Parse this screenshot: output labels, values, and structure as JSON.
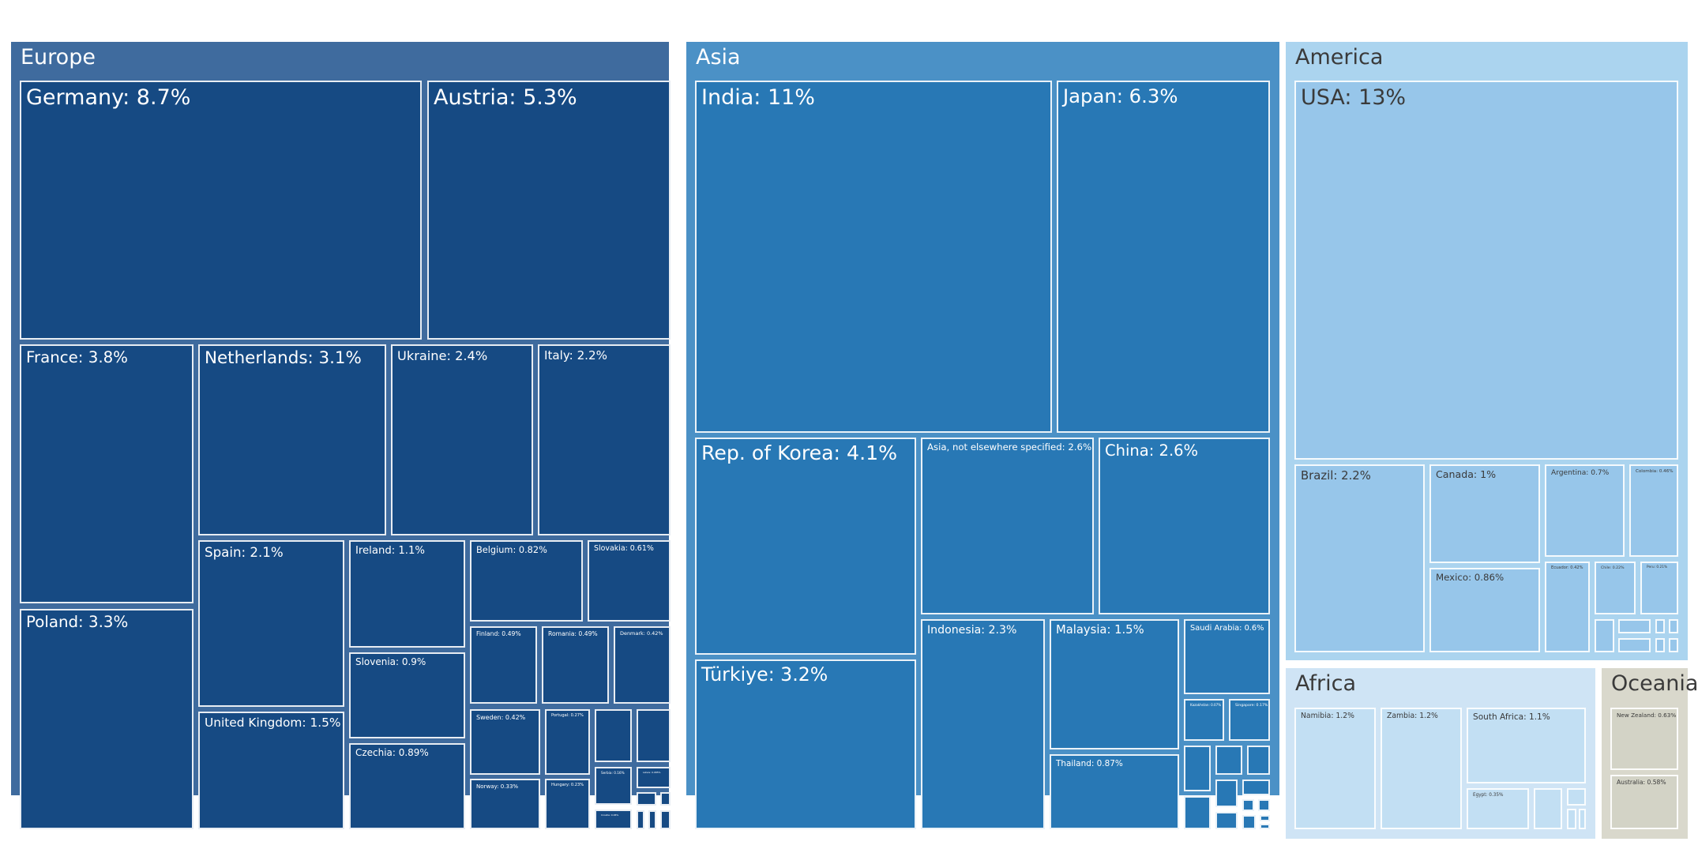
{
  "chart_data": {
    "type": "treemap",
    "unit": "%",
    "groups": [
      {
        "name": "Europe",
        "color": "#3f6b9e",
        "cell_color": "#164a83",
        "text_color": "#ffffff",
        "items": [
          {
            "name": "Germany",
            "label": "Germany: 8.7%",
            "value": 8.7
          },
          {
            "name": "Austria",
            "label": "Austria: 5.3%",
            "value": 5.3
          },
          {
            "name": "France",
            "label": "France: 3.8%",
            "value": 3.8
          },
          {
            "name": "Netherlands",
            "label": "Netherlands: 3.1%",
            "value": 3.1
          },
          {
            "name": "Ukraine",
            "label": "Ukraine: 2.4%",
            "value": 2.4
          },
          {
            "name": "Italy",
            "label": "Italy: 2.2%",
            "value": 2.2
          },
          {
            "name": "Poland",
            "label": "Poland: 3.3%",
            "value": 3.3
          },
          {
            "name": "Spain",
            "label": "Spain: 2.1%",
            "value": 2.1
          },
          {
            "name": "Ireland",
            "label": "Ireland: 1.1%",
            "value": 1.1
          },
          {
            "name": "Belgium",
            "label": "Belgium: 0.82%",
            "value": 0.82
          },
          {
            "name": "Slovakia",
            "label": "Slovakia: 0.61%",
            "value": 0.61
          },
          {
            "name": "Slovenia",
            "label": "Slovenia: 0.9%",
            "value": 0.9
          },
          {
            "name": "Finland",
            "label": "Finland: 0.49%",
            "value": 0.49
          },
          {
            "name": "Romania",
            "label": "Romania: 0.49%",
            "value": 0.49
          },
          {
            "name": "Denmark",
            "label": "Denmark: 0.42%",
            "value": 0.42
          },
          {
            "name": "United Kingdom",
            "label": "United Kingdom: 1.5%",
            "value": 1.5
          },
          {
            "name": "Czechia",
            "label": "Czechia: 0.89%",
            "value": 0.89
          },
          {
            "name": "Sweden",
            "label": "Sweden: 0.42%",
            "value": 0.42
          },
          {
            "name": "Portugal",
            "label": "Portugal: 0.27%",
            "value": 0.27
          },
          {
            "name": "Norway",
            "label": "Norway: 0.33%",
            "value": 0.33
          },
          {
            "name": "Hungary",
            "label": "Hungary: 0.23%",
            "value": 0.23
          },
          {
            "name": "Serbia",
            "label": "Serbia: 0.16%",
            "value": 0.16
          },
          {
            "name": "Latvia",
            "label": "Latvia: 0.085%",
            "value": 0.085
          },
          {
            "name": "Croatia",
            "label": "Croatia: 0.06%",
            "value": 0.06
          },
          {
            "name": "Europe small 1",
            "label": "",
            "value": 0.15
          },
          {
            "name": "Europe small 2",
            "label": "",
            "value": 0.14
          },
          {
            "name": "Europe small 3",
            "label": "",
            "value": 0.04
          },
          {
            "name": "Europe small 4",
            "label": "",
            "value": 0.03
          },
          {
            "name": "Europe small 5",
            "label": "",
            "value": 0.02
          },
          {
            "name": "Europe small 6",
            "label": "",
            "value": 0.02
          },
          {
            "name": "Europe small 7",
            "label": "",
            "value": 0.02
          }
        ]
      },
      {
        "name": "Asia",
        "color": "#4b91c6",
        "cell_color": "#2878b5",
        "text_color": "#ffffff",
        "items": [
          {
            "name": "India",
            "label": "India: 11%",
            "value": 11
          },
          {
            "name": "Japan",
            "label": "Japan: 6.3%",
            "value": 6.3
          },
          {
            "name": "Rep. of Korea",
            "label": "Rep. of Korea: 4.1%",
            "value": 4.1
          },
          {
            "name": "Asia, not elsewhere specified",
            "label": "Asia, not elsewhere specified: 2.6%",
            "value": 2.6
          },
          {
            "name": "China",
            "label": "China: 2.6%",
            "value": 2.6
          },
          {
            "name": "Türkiye",
            "label": "Türkiye: 3.2%",
            "value": 3.2
          },
          {
            "name": "Indonesia",
            "label": "Indonesia: 2.3%",
            "value": 2.3
          },
          {
            "name": "Malaysia",
            "label": "Malaysia: 1.5%",
            "value": 1.5
          },
          {
            "name": "Saudi Arabia",
            "label": "Saudi Arabia: 0.6%",
            "value": 0.6
          },
          {
            "name": "Thailand",
            "label": "Thailand: 0.87%",
            "value": 0.87
          },
          {
            "name": "Kazakhstan",
            "label": "Kazakhstan: 0.07%",
            "value": 0.07
          },
          {
            "name": "Singapore",
            "label": "Singapore: 0.17%",
            "value": 0.17
          },
          {
            "name": "Asia small 1",
            "label": "",
            "value": 0.12
          },
          {
            "name": "Asia small 2",
            "label": "",
            "value": 0.1
          },
          {
            "name": "Asia small 3",
            "label": "",
            "value": 0.1
          },
          {
            "name": "Asia small 4",
            "label": "",
            "value": 0.1
          },
          {
            "name": "Asia small 5",
            "label": "",
            "value": 0.07
          },
          {
            "name": "Asia small 6",
            "label": "",
            "value": 0.06
          },
          {
            "name": "Asia small 7",
            "label": "",
            "value": 0.06
          },
          {
            "name": "Asia small 8",
            "label": "",
            "value": 0.04
          },
          {
            "name": "Asia small 9",
            "label": "",
            "value": 0.03
          },
          {
            "name": "Asia small 10",
            "label": "",
            "value": 0.03
          },
          {
            "name": "Asia small 11",
            "label": "",
            "value": 0.02
          },
          {
            "name": "Asia small 12",
            "label": "",
            "value": 0.02
          }
        ]
      },
      {
        "name": "America",
        "color": "#abd4ef",
        "cell_color": "#97c6ea",
        "text_color": "#3a3a3a",
        "items": [
          {
            "name": "USA",
            "label": "USA: 13%",
            "value": 13
          },
          {
            "name": "Brazil",
            "label": "Brazil: 2.2%",
            "value": 2.2
          },
          {
            "name": "Canada",
            "label": "Canada: 1%",
            "value": 1
          },
          {
            "name": "Argentina",
            "label": "Argentina: 0.7%",
            "value": 0.7
          },
          {
            "name": "Colombia",
            "label": "Colombia: 0.46%",
            "value": 0.46
          },
          {
            "name": "Mexico",
            "label": "Mexico: 0.86%",
            "value": 0.86
          },
          {
            "name": "Ecuador",
            "label": "Ecuador: 0.42%",
            "value": 0.42
          },
          {
            "name": "Chile",
            "label": "Chile: 0.22%",
            "value": 0.22
          },
          {
            "name": "Peru",
            "label": "Peru: 0.21%",
            "value": 0.21
          },
          {
            "name": "America small 1",
            "label": "",
            "value": 0.06
          },
          {
            "name": "America small 2",
            "label": "",
            "value": 0.05
          },
          {
            "name": "America small 3",
            "label": "",
            "value": 0.05
          },
          {
            "name": "America small 4",
            "label": "",
            "value": 0.02
          },
          {
            "name": "America small 5",
            "label": "",
            "value": 0.02
          },
          {
            "name": "America small 6",
            "label": "",
            "value": 0.02
          },
          {
            "name": "America small 7",
            "label": "",
            "value": 0.01
          }
        ]
      },
      {
        "name": "Africa",
        "color": "#cfe4f5",
        "cell_color": "#c2dff3",
        "text_color": "#3a3a3a",
        "items": [
          {
            "name": "Namibia",
            "label": "Namibia: 1.2%",
            "value": 1.2
          },
          {
            "name": "Zambia",
            "label": "Zambia: 1.2%",
            "value": 1.2
          },
          {
            "name": "South Africa",
            "label": "South Africa: 1.1%",
            "value": 1.1
          },
          {
            "name": "Egypt",
            "label": "Egypt: 0.35%",
            "value": 0.35
          },
          {
            "name": "Africa small 1",
            "label": "",
            "value": 0.1
          },
          {
            "name": "Africa small 2",
            "label": "",
            "value": 0.05
          },
          {
            "name": "Africa small 3",
            "label": "",
            "value": 0.02
          },
          {
            "name": "Africa small 4",
            "label": "",
            "value": 0.02
          }
        ]
      },
      {
        "name": "Oceania",
        "color": "#d9d8cc",
        "cell_color": "#d3d3c6",
        "text_color": "#3a3a3a",
        "items": [
          {
            "name": "New Zealand",
            "label": "New Zealand: 0.63%",
            "value": 0.63
          },
          {
            "name": "Australia",
            "label": "Australia: 0.58%",
            "value": 0.58
          }
        ]
      }
    ]
  }
}
